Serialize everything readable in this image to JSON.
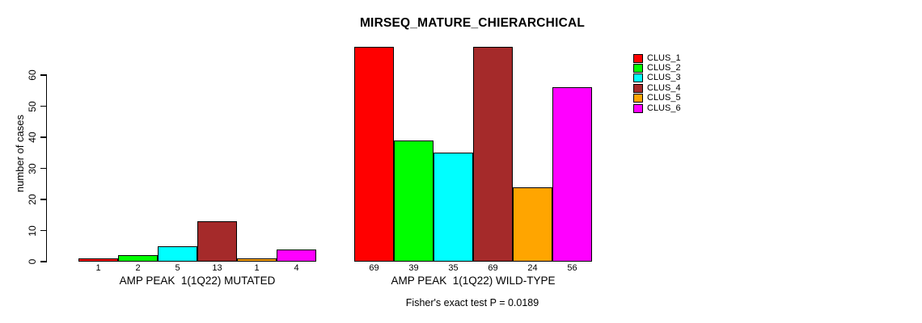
{
  "chart_data": {
    "type": "bar",
    "title": "MIRSEQ_MATURE_CHIERARCHICAL",
    "ylabel": "number of cases",
    "ylim": [
      0,
      69
    ],
    "yticks": [
      0,
      10,
      20,
      30,
      40,
      50,
      60
    ],
    "grid": false,
    "legend_position": "top-right",
    "categories": [
      "AMP PEAK  1(1Q22) MUTATED",
      "AMP PEAK  1(1Q22) WILD-TYPE"
    ],
    "series": [
      {
        "name": "CLUS_1",
        "color": "#FF0000",
        "values": [
          1,
          69
        ]
      },
      {
        "name": "CLUS_2",
        "color": "#00FF00",
        "values": [
          2,
          39
        ]
      },
      {
        "name": "CLUS_3",
        "color": "#00FFFF",
        "values": [
          5,
          35
        ]
      },
      {
        "name": "CLUS_4",
        "color": "#A52A2A",
        "values": [
          13,
          69
        ]
      },
      {
        "name": "CLUS_5",
        "color": "#FFA500",
        "values": [
          1,
          24
        ]
      },
      {
        "name": "CLUS_6",
        "color": "#FF00FF",
        "values": [
          4,
          56
        ]
      }
    ],
    "bar_value_labels_shown": true,
    "footnote": "Fisher's exact test P = 0.0189"
  }
}
